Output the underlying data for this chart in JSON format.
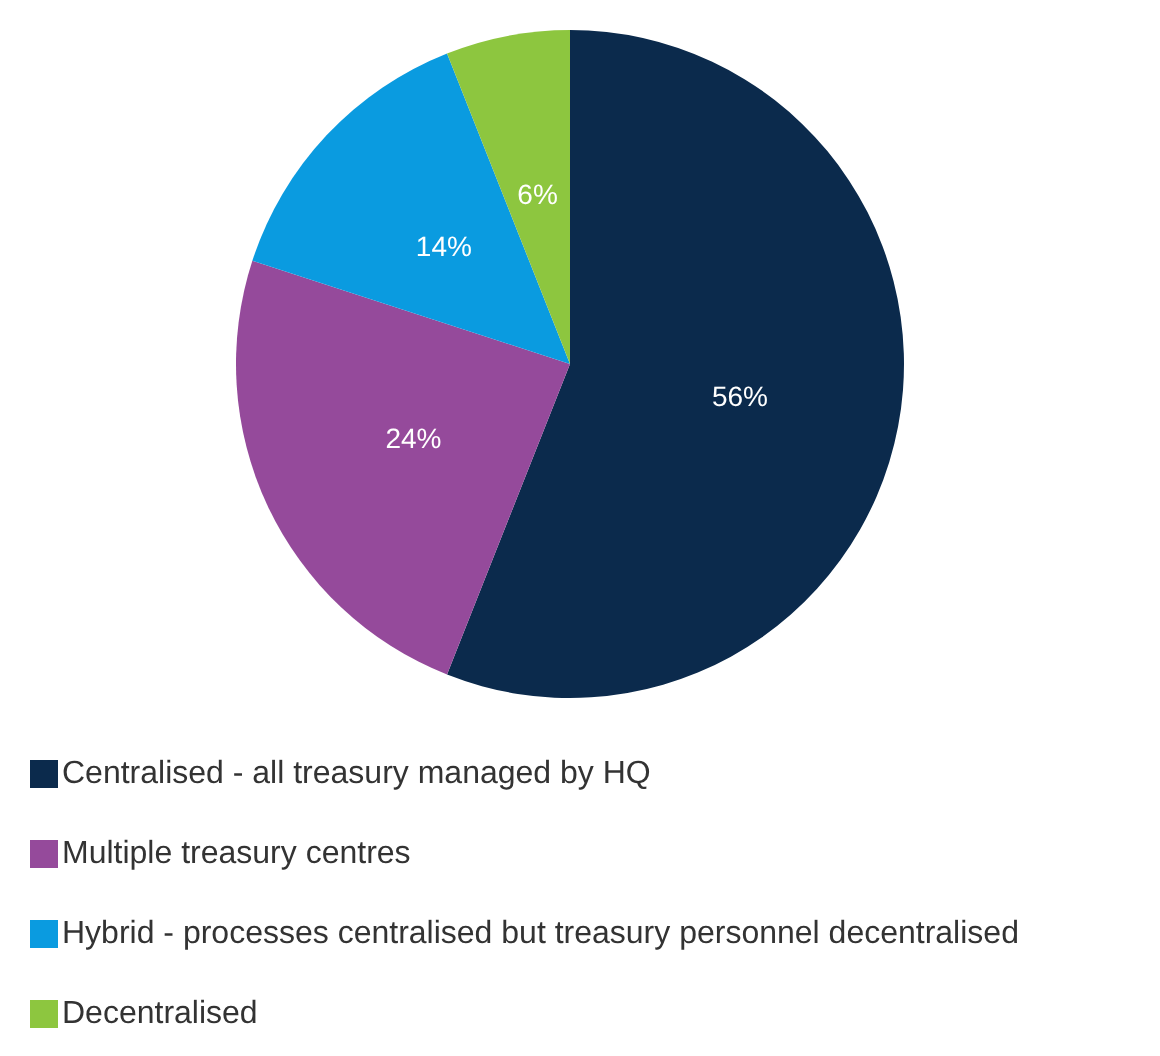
{
  "chart_data": {
    "type": "pie",
    "categories": [
      "Centralised - all treasury managed by HQ",
      "Multiple treasury centres",
      "Hybrid - processes centralised but treasury personnel decentralised",
      "Decentralised"
    ],
    "values": [
      56,
      24,
      14,
      6
    ],
    "colors": [
      "#0b2a4c",
      "#954a9b",
      "#0a9be0",
      "#8dc63f"
    ],
    "value_labels": [
      "56%",
      "24%",
      "14%",
      "6%"
    ],
    "legend": "bottom"
  }
}
